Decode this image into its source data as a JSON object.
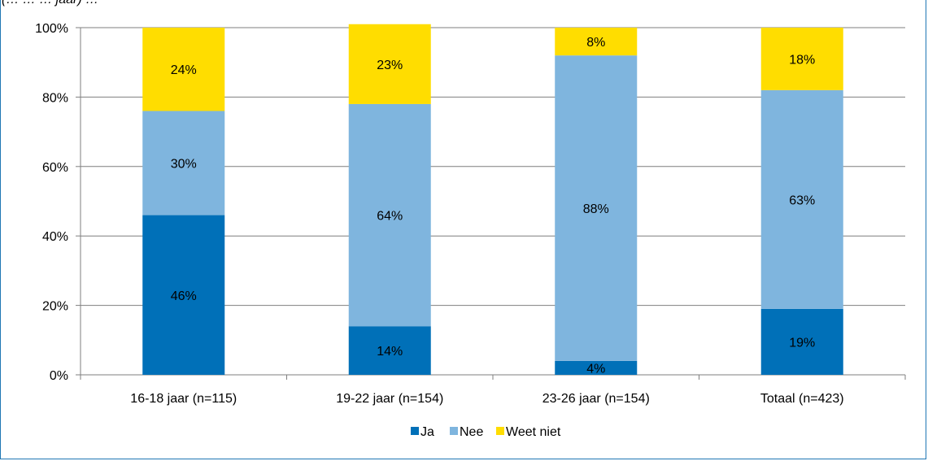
{
  "subtitle_fragment": "(… … … jaar) …",
  "chart_data": {
    "type": "bar",
    "stacked": true,
    "categories": [
      "16-18 jaar (n=115)",
      "19-22 jaar (n=154)",
      "23-26 jaar (n=154)",
      "Totaal (n=423)"
    ],
    "series": [
      {
        "name": "Ja",
        "color": "#0070b8",
        "values": [
          46,
          14,
          4,
          19
        ],
        "labels": [
          "46%",
          "14%",
          "4%",
          "19%"
        ]
      },
      {
        "name": "Nee",
        "color": "#7fb5de",
        "values": [
          30,
          64,
          88,
          63
        ],
        "labels": [
          "30%",
          "64%",
          "88%",
          "63%"
        ]
      },
      {
        "name": "Weet niet",
        "color": "#ffdd00",
        "values": [
          24,
          23,
          8,
          18
        ],
        "labels": [
          "24%",
          "23%",
          "8%",
          "18%"
        ]
      }
    ],
    "yticks": [
      "0%",
      "20%",
      "40%",
      "60%",
      "80%",
      "100%"
    ],
    "ylim": [
      0,
      100
    ],
    "grid": true,
    "legend_position": "bottom"
  }
}
